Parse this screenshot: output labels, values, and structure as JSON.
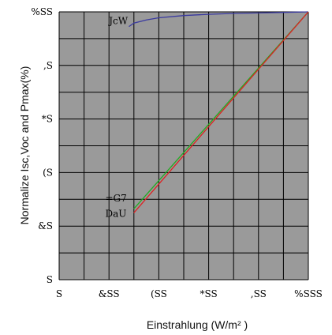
{
  "chart_data": {
    "type": "line",
    "title": "",
    "xlabel": "Einstrahlung (W/m² )",
    "ylabel": "Normalize Isc,Voc and Pmax(%)",
    "xlim": [
      0,
      1000
    ],
    "ylim": [
      0,
      100
    ],
    "grid": true,
    "x_ticks": [
      {
        "value": 0,
        "label": "S"
      },
      {
        "value": 200,
        "label": "&SS"
      },
      {
        "value": 400,
        "label": "(SS"
      },
      {
        "value": 600,
        "label": "*SS"
      },
      {
        "value": 800,
        "label": ",SS"
      },
      {
        "value": 1000,
        "label": "%SSS"
      }
    ],
    "y_ticks": [
      {
        "value": 0,
        "label": "S"
      },
      {
        "value": 20,
        "label": "&S"
      },
      {
        "value": 40,
        "label": "(S"
      },
      {
        "value": 60,
        "label": "*S"
      },
      {
        "value": 80,
        "label": ",S"
      },
      {
        "value": 100,
        "label": "%SS"
      }
    ],
    "series": [
      {
        "name": "JcW",
        "color": "#3a3aa0",
        "x": [
          280,
          300,
          350,
          400,
          500,
          600,
          700,
          800,
          900,
          1000
        ],
        "y": [
          94.5,
          95.8,
          97.0,
          97.8,
          98.6,
          99.1,
          99.4,
          99.6,
          99.8,
          100
        ]
      },
      {
        "name": "=G7",
        "color": "#22aa22",
        "x": [
          300,
          1000
        ],
        "y": [
          26.5,
          100
        ]
      },
      {
        "name": "DaU",
        "color": "#dd2222",
        "x": [
          300,
          1000
        ],
        "y": [
          25.0,
          100
        ]
      }
    ]
  }
}
